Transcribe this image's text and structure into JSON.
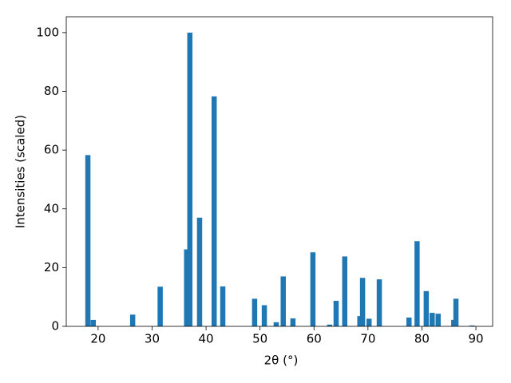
{
  "chart_data": {
    "type": "bar",
    "xlabel": "2θ (°)",
    "ylabel": "Intensities (scaled)",
    "x": [
      18.1,
      19.1,
      26.4,
      31.5,
      36.4,
      37.0,
      38.8,
      41.5,
      43.1,
      49.0,
      50.8,
      53.0,
      54.3,
      56.1,
      59.8,
      62.9,
      64.1,
      65.7,
      68.5,
      69.0,
      70.2,
      72.1,
      77.6,
      79.1,
      80.8,
      81.9,
      83.0,
      85.9,
      86.3,
      89.3
    ],
    "values": [
      58.3,
      2.2,
      4,
      13.5,
      26.2,
      100,
      37,
      78.3,
      13.6,
      9.4,
      7.2,
      1.4,
      17,
      2.7,
      25.2,
      0.6,
      8.7,
      23.8,
      3.5,
      16.5,
      2.6,
      16,
      3,
      29,
      12,
      4.6,
      4.3,
      2.2,
      9.4,
      0.3
    ],
    "color": "#1f77b4",
    "xlim": [
      14.1,
      93.1
    ],
    "xticks": [
      20,
      30,
      40,
      50,
      60,
      70,
      80,
      90
    ],
    "ylim": [
      0,
      105.4
    ],
    "yticks": [
      0,
      20,
      40,
      60,
      80,
      100
    ]
  }
}
